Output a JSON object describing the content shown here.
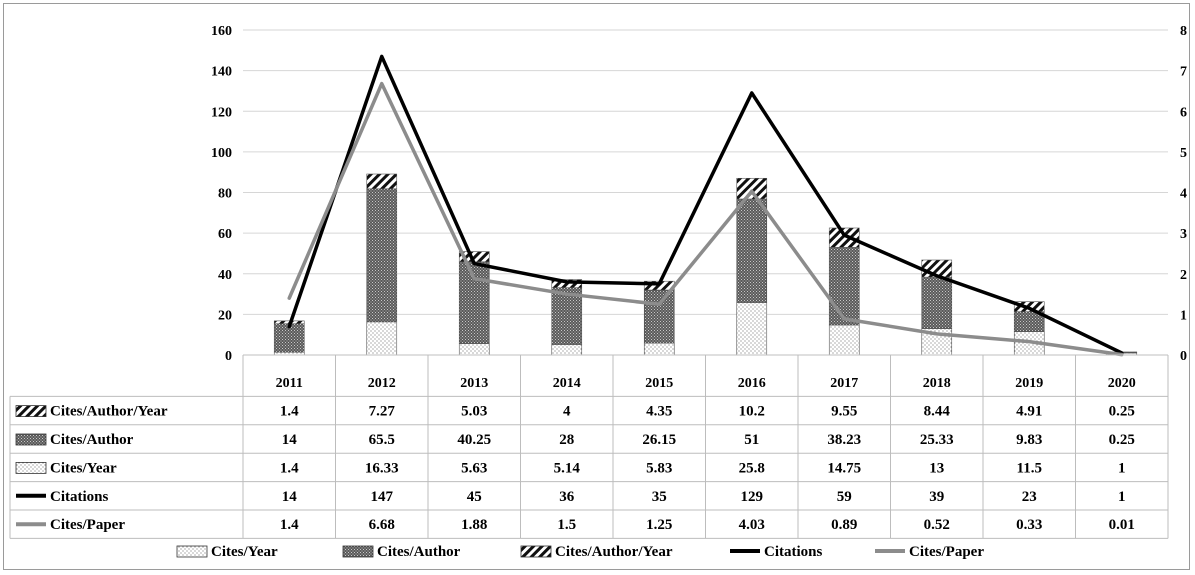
{
  "chart_data": {
    "type": "bar",
    "stacked": true,
    "categories": [
      "2011",
      "2012",
      "2013",
      "2014",
      "2015",
      "2016",
      "2017",
      "2018",
      "2019",
      "2020"
    ],
    "left_axis": {
      "ylim": [
        0,
        160
      ],
      "ticks": [
        "0",
        "20",
        "40",
        "60",
        "80",
        "100",
        "120",
        "140",
        "160"
      ]
    },
    "right_axis": {
      "ylim": [
        0,
        8
      ],
      "ticks": [
        "0",
        "1",
        "2",
        "3",
        "4",
        "5",
        "6",
        "7",
        "8"
      ]
    },
    "grid": true,
    "legend_position": "bottom",
    "series": [
      {
        "name": "Cites/Year",
        "kind": "bar",
        "axis": "left",
        "pattern": "dots",
        "values": [
          1.4,
          16.33,
          5.63,
          5.14,
          5.83,
          25.8,
          14.75,
          13,
          11.5,
          1
        ],
        "labels": [
          "1.4",
          "16.33",
          "5.63",
          "5.14",
          "5.83",
          "25.8",
          "14.75",
          "13",
          "11.5",
          "1"
        ]
      },
      {
        "name": "Cites/Author",
        "kind": "bar",
        "axis": "left",
        "pattern": "dense",
        "values": [
          14,
          65.5,
          40.25,
          28,
          26.15,
          51,
          38.23,
          25.33,
          9.83,
          0.25
        ],
        "labels": [
          "14",
          "65.5",
          "40.25",
          "28",
          "26.15",
          "51",
          "38.23",
          "25.33",
          "9.83",
          "0.25"
        ]
      },
      {
        "name": "Cites/Author/Year",
        "kind": "bar",
        "axis": "left",
        "pattern": "diagonal",
        "values": [
          1.4,
          7.27,
          5.03,
          4,
          4.35,
          10.2,
          9.55,
          8.44,
          4.91,
          0.25
        ],
        "labels": [
          "1.4",
          "7.27",
          "5.03",
          "4",
          "4.35",
          "10.2",
          "9.55",
          "8.44",
          "4.91",
          "0.25"
        ]
      },
      {
        "name": "Citations",
        "kind": "line",
        "axis": "left",
        "color": "#000000",
        "values": [
          14,
          147,
          45,
          36,
          35,
          129,
          59,
          39,
          23,
          1
        ],
        "labels": [
          "14",
          "147",
          "45",
          "36",
          "35",
          "129",
          "59",
          "39",
          "23",
          "1"
        ]
      },
      {
        "name": "Cites/Paper",
        "kind": "line",
        "axis": "right",
        "color": "#8c8c8c",
        "values": [
          1.4,
          6.68,
          1.88,
          1.5,
          1.25,
          4.03,
          0.89,
          0.52,
          0.33,
          0.01
        ],
        "labels": [
          "1.4",
          "6.68",
          "1.88",
          "1.5",
          "1.25",
          "4.03",
          "0.89",
          "0.52",
          "0.33",
          "0.01"
        ]
      }
    ],
    "table_row_order": [
      "Cites/Author/Year",
      "Cites/Author",
      "Cites/Year",
      "Citations",
      "Cites/Paper"
    ],
    "legend_order": [
      "Cites/Year",
      "Cites/Author",
      "Cites/Author/Year",
      "Citations",
      "Cites/Paper"
    ]
  }
}
